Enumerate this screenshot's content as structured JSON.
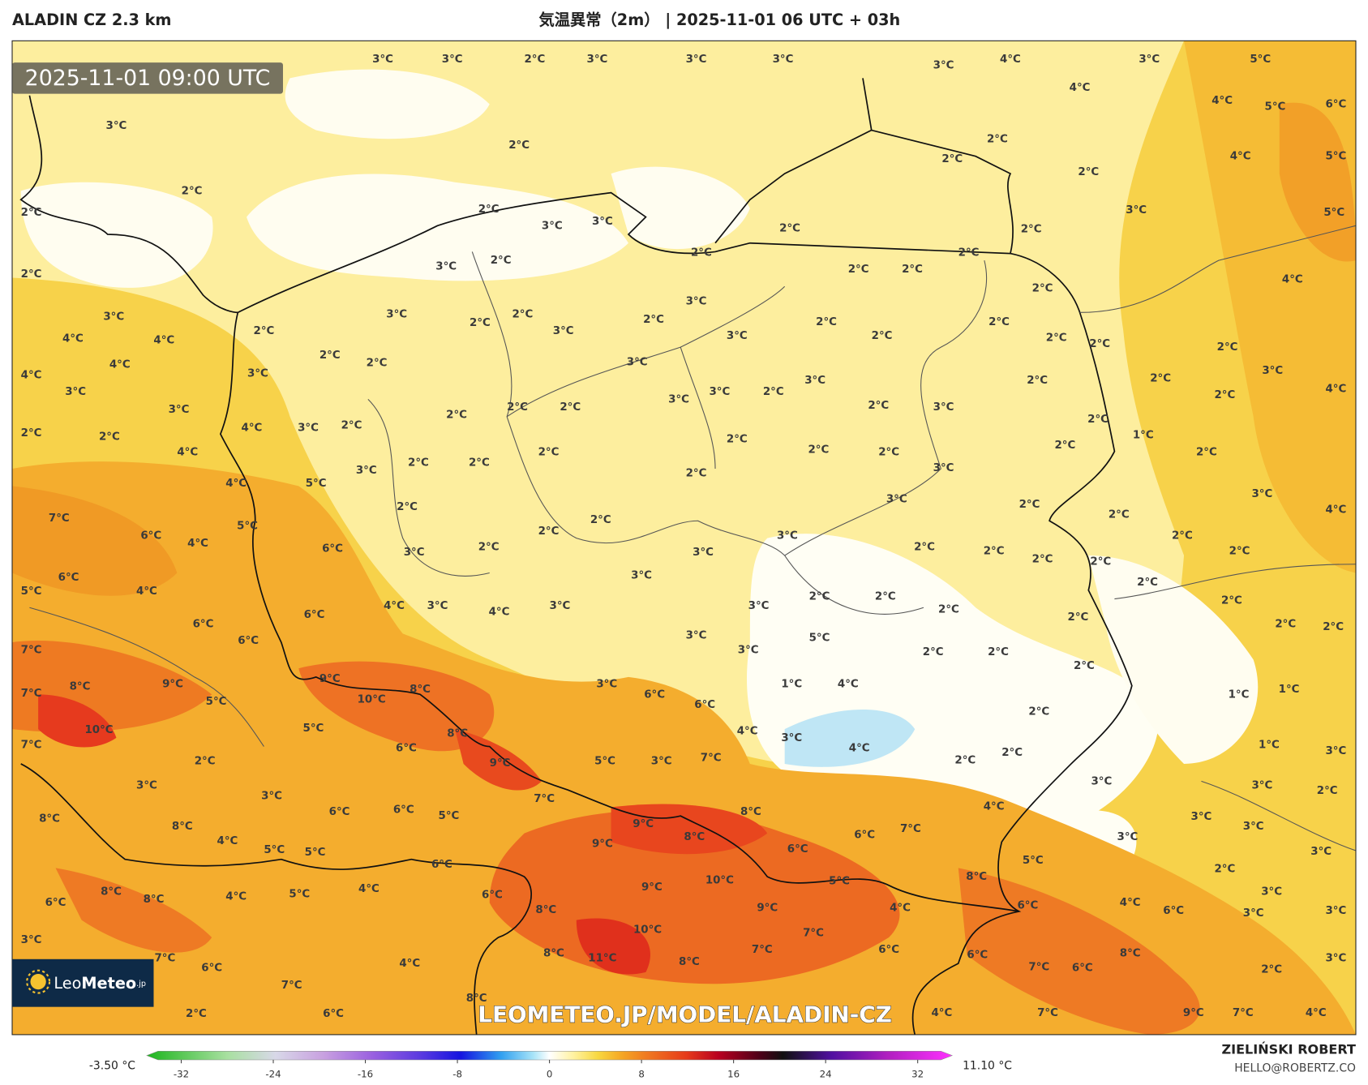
{
  "header": {
    "model": "ALADIN CZ 2.3 km",
    "title": "気温異常（2m） | 2025-11-01 06 UTC + 03h"
  },
  "map": {
    "time": "2025-11-01 09:00 UTC",
    "watermark": "LEOMETEO.JP/MODEL/ALADIN-CZ",
    "labels": [
      "3°C",
      "2°C",
      "2°C",
      "2°C",
      "3°C",
      "3°C",
      "2°C",
      "3°C",
      "3°C",
      "3°C",
      "3°C",
      "4°C",
      "3°C",
      "5°C",
      "4°C",
      "4°C",
      "5°C",
      "6°C",
      "2°C",
      "2°C",
      "2°C",
      "4°C",
      "5°C",
      "2°C",
      "2°C",
      "3°C",
      "3°C",
      "2°C",
      "2°C",
      "5°C",
      "3°C",
      "2°C",
      "2°C",
      "3°C",
      "2°C",
      "2°C",
      "2°C",
      "2°C",
      "4°C",
      "3°C",
      "2°C",
      "3°C",
      "2°C",
      "2°C",
      "3°C",
      "2°C",
      "3°C",
      "3°C",
      "2°C",
      "2°C",
      "2°C",
      "4°C",
      "4°C",
      "2°C",
      "2°C",
      "4°C",
      "2°C",
      "2°C",
      "3°C",
      "2°C",
      "4°C",
      "3°C",
      "3°C",
      "2°C",
      "2°C",
      "3°C",
      "3°C",
      "3°C",
      "3°C",
      "2°C",
      "2°C",
      "3°C",
      "2°C",
      "4°C",
      "3°C",
      "2°C",
      "2°C",
      "2°C",
      "2°C",
      "2°C",
      "4°C",
      "3°C",
      "2°C",
      "2°C",
      "2°C",
      "1°C",
      "4°C",
      "2°C",
      "2°C",
      "2°C",
      "2°C",
      "2°C",
      "2°C",
      "2°C",
      "3°C",
      "2°C",
      "3°C",
      "4°C",
      "5°C",
      "3°C",
      "3°C",
      "2°C",
      "2°C",
      "7°C",
      "5°C",
      "2°C",
      "2°C",
      "4°C",
      "6°C",
      "2°C",
      "3°C",
      "2°C",
      "4°C",
      "6°C",
      "3°C",
      "2°C",
      "3°C",
      "2°C",
      "2°C",
      "2°C",
      "2°C",
      "6°C",
      "3°C",
      "2°C",
      "2°C",
      "5°C",
      "4°C",
      "2°C",
      "2°C",
      "4°C",
      "3°C",
      "4°C",
      "3°C",
      "3°C",
      "2°C",
      "2°C",
      "6°C",
      "6°C",
      "2°C",
      "2°C",
      "2°C",
      "6°C",
      "3°C",
      "5°C",
      "7°C",
      "3°C",
      "2°C",
      "2°C",
      "2°C",
      "9°C",
      "9°C",
      "3°C",
      "1°C",
      "4°C",
      "1°C",
      "8°C",
      "8°C",
      "7°C",
      "10°C",
      "6°C",
      "1°C",
      "5°C",
      "6°C",
      "2°C",
      "10°C",
      "5°C",
      "8°C",
      "4°C",
      "3°C",
      "7°C",
      "1°C",
      "2°C",
      "6°C",
      "4°C",
      "2°C",
      "3°C",
      "9°C",
      "5°C",
      "3°C",
      "7°C",
      "2°C",
      "3°C",
      "3°C",
      "3°C",
      "2°C",
      "3°C",
      "7°C",
      "8°C",
      "4°C",
      "6°C",
      "6°C",
      "5°C",
      "3°C",
      "8°C",
      "8°C",
      "9°C",
      "7°C",
      "3°C",
      "4°C",
      "8°C",
      "6°C",
      "9°C",
      "6°C",
      "3°C",
      "5°C",
      "5°C",
      "3°C",
      "6°C",
      "5°C",
      "2°C",
      "8°C",
      "8°C",
      "4°C",
      "5°C",
      "4°C",
      "6°C",
      "9°C",
      "10°C",
      "5°C",
      "8°C",
      "3°C",
      "3°C",
      "6°C",
      "4°C",
      "6°C",
      "4°C",
      "6°C",
      "8°C",
      "9°C",
      "3°C",
      "10°C",
      "7°C",
      "3°C",
      "6°C",
      "8°C",
      "7°C",
      "6°C",
      "8°C",
      "7°C",
      "11°C",
      "8°C",
      "3°C",
      "4°C",
      "6°C",
      "7°C",
      "6°C",
      "2°C",
      "7°C",
      "8°C",
      "2°C",
      "6°C",
      "4°C",
      "7°C",
      "9°C",
      "7°C",
      "4°C"
    ]
  },
  "logo": {
    "leo": "Leo",
    "meteo": "Meteo",
    "jp": ".jp"
  },
  "credit": {
    "name": "ZIELIŃSKI ROBERT",
    "email": "HELLO@ROBERTZ.CO"
  },
  "colorbar": {
    "min_label": "-3.50 °C",
    "max_label": "11.10 °C",
    "lim": [
      -35,
      35
    ],
    "ticks": [
      -32,
      -24,
      -16,
      -8,
      0,
      8,
      16,
      24,
      32
    ]
  }
}
